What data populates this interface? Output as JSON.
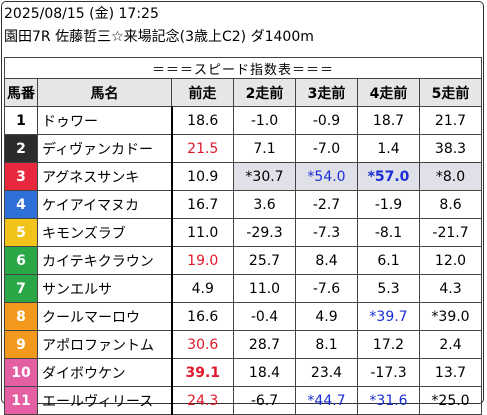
{
  "header": {
    "line1": "2025/08/15 (金) 17:25",
    "line2": "園田7R 佐藤哲三☆来場記念(3歳上C2) ダ1400m"
  },
  "table": {
    "title": "＝＝＝スピード指数表＝＝＝",
    "columns": [
      "馬番",
      "馬名",
      "前走",
      "2走前",
      "3走前",
      "4走前",
      "5走前"
    ],
    "rows": [
      {
        "num": "1",
        "name": "ドゥワー",
        "v": [
          "18.6",
          "-1.0",
          "-0.9",
          "18.7",
          "21.7"
        ]
      },
      {
        "num": "2",
        "name": "ディヴァンカドー",
        "v": [
          "21.5",
          "7.1",
          "-7.0",
          "1.4",
          "38.3"
        ]
      },
      {
        "num": "3",
        "name": "アグネスサンキ",
        "v": [
          "10.9",
          "*30.7",
          "*54.0",
          "*57.0",
          "*8.0"
        ]
      },
      {
        "num": "4",
        "name": "ケイアイマヌカ",
        "v": [
          "16.7",
          "3.6",
          "-2.7",
          "-1.9",
          "8.6"
        ]
      },
      {
        "num": "5",
        "name": "キモンズラブ",
        "v": [
          "11.0",
          "-29.3",
          "-7.3",
          "-8.1",
          "-21.7"
        ]
      },
      {
        "num": "6",
        "name": "カイテキクラウン",
        "v": [
          "19.0",
          "25.7",
          "8.4",
          "6.1",
          "12.0"
        ]
      },
      {
        "num": "7",
        "name": "サンエルサ",
        "v": [
          "4.9",
          "11.0",
          "-7.6",
          "5.3",
          "4.3"
        ]
      },
      {
        "num": "8",
        "name": "クールマーロウ",
        "v": [
          "16.6",
          "-0.4",
          "4.9",
          "*39.7",
          "*39.0"
        ]
      },
      {
        "num": "9",
        "name": "アポロファントム",
        "v": [
          "30.6",
          "28.7",
          "8.1",
          "17.2",
          "2.4"
        ]
      },
      {
        "num": "10",
        "name": "ダイボウケン",
        "v": [
          "39.1",
          "18.4",
          "23.4",
          "-17.3",
          "13.7"
        ]
      },
      {
        "num": "11",
        "name": "エールヴィリース",
        "v": [
          "24.3",
          "-6.7",
          "*44.7",
          "*31.6",
          "*25.0"
        ]
      }
    ]
  },
  "colors": {
    "frame_colors": [
      "#ffffff",
      "#2b2b2b",
      "#e8283c",
      "#2f6fd8",
      "#f2c419",
      "#2aa848",
      "#f39a1e",
      "#f39a1e",
      "#e55fa3",
      "#e55fa3",
      "#e55fa3"
    ],
    "red": "#e0182b",
    "blue": "#1a2ed6"
  }
}
